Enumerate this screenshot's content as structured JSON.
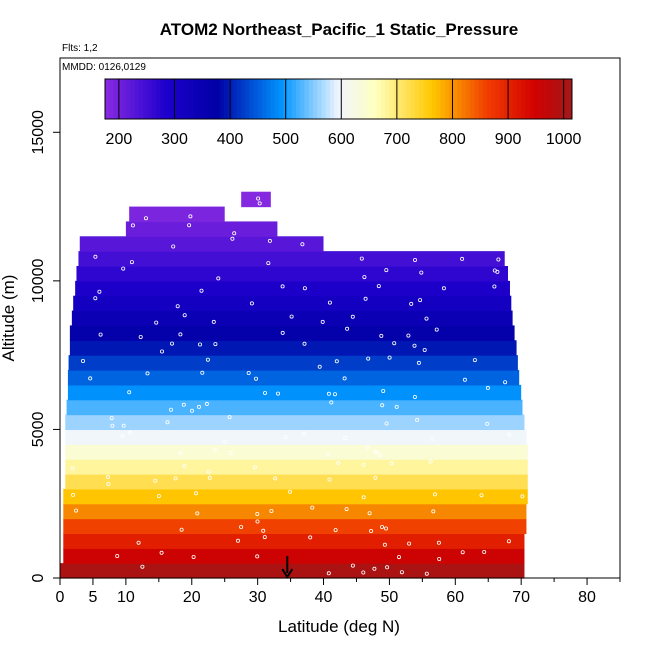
{
  "chart_data": {
    "type": "heatmap",
    "title": "ATOM2 Northeast_Pacific_1 Static_Pressure",
    "annotations": [
      "Flts: 1,2",
      "MMDD: 0126,0129"
    ],
    "xlabel": "Latitude (deg N)",
    "ylabel": "Altitude (m)",
    "xlim": [
      0,
      85
    ],
    "ylim": [
      0,
      17500
    ],
    "x_ticks": [
      0,
      5,
      10,
      20,
      30,
      40,
      50,
      60,
      70,
      80
    ],
    "y_ticks": [
      0,
      5000,
      10000,
      15000
    ],
    "colorbar": {
      "range": [
        175,
        1015
      ],
      "ticks": [
        200,
        300,
        400,
        500,
        600,
        700,
        800,
        900,
        1000
      ]
    },
    "marker": {
      "latitude": 34.5,
      "altitude": 0
    },
    "grid": false,
    "layers": [
      {
        "alt_bottom": 0,
        "alt_top": 500,
        "lat_min": 0.0,
        "lat_max": 70.5,
        "pressure": 1000
      },
      {
        "alt_bottom": 500,
        "alt_top": 1000,
        "lat_min": 0.5,
        "lat_max": 70.5,
        "pressure": 955
      },
      {
        "alt_bottom": 1000,
        "alt_top": 1500,
        "lat_min": 0.5,
        "lat_max": 70.5,
        "pressure": 905
      },
      {
        "alt_bottom": 1500,
        "alt_top": 2000,
        "lat_min": 0.5,
        "lat_max": 70.8,
        "pressure": 860
      },
      {
        "alt_bottom": 2000,
        "alt_top": 2500,
        "lat_min": 0.5,
        "lat_max": 70.8,
        "pressure": 810
      },
      {
        "alt_bottom": 2500,
        "alt_top": 3000,
        "lat_min": 0.5,
        "lat_max": 71.0,
        "pressure": 765
      },
      {
        "alt_bottom": 3000,
        "alt_top": 3500,
        "lat_min": 0.8,
        "lat_max": 71.0,
        "pressure": 720
      },
      {
        "alt_bottom": 3500,
        "alt_top": 4000,
        "lat_min": 0.8,
        "lat_max": 71.0,
        "pressure": 680
      },
      {
        "alt_bottom": 4000,
        "alt_top": 4500,
        "lat_min": 0.8,
        "lat_max": 71.0,
        "pressure": 640
      },
      {
        "alt_bottom": 4500,
        "alt_top": 5000,
        "lat_min": 0.8,
        "lat_max": 70.8,
        "pressure": 600
      },
      {
        "alt_bottom": 5000,
        "alt_top": 5500,
        "lat_min": 0.8,
        "lat_max": 70.5,
        "pressure": 560
      },
      {
        "alt_bottom": 5500,
        "alt_top": 6000,
        "lat_min": 1.0,
        "lat_max": 70.2,
        "pressure": 525
      },
      {
        "alt_bottom": 6000,
        "alt_top": 6500,
        "lat_min": 1.2,
        "lat_max": 70.0,
        "pressure": 490
      },
      {
        "alt_bottom": 6500,
        "alt_top": 7000,
        "lat_min": 1.2,
        "lat_max": 69.7,
        "pressure": 455
      },
      {
        "alt_bottom": 7000,
        "alt_top": 7500,
        "lat_min": 1.3,
        "lat_max": 69.5,
        "pressure": 425
      },
      {
        "alt_bottom": 7500,
        "alt_top": 8000,
        "lat_min": 1.5,
        "lat_max": 69.3,
        "pressure": 395
      },
      {
        "alt_bottom": 8000,
        "alt_top": 8500,
        "lat_min": 1.5,
        "lat_max": 69.0,
        "pressure": 365
      },
      {
        "alt_bottom": 8500,
        "alt_top": 9000,
        "lat_min": 1.8,
        "lat_max": 68.7,
        "pressure": 340
      },
      {
        "alt_bottom": 9000,
        "alt_top": 9500,
        "lat_min": 2.0,
        "lat_max": 68.5,
        "pressure": 315
      },
      {
        "alt_bottom": 9500,
        "alt_top": 10000,
        "lat_min": 2.3,
        "lat_max": 68.3,
        "pressure": 290
      },
      {
        "alt_bottom": 10000,
        "alt_top": 10500,
        "lat_min": 2.5,
        "lat_max": 68.0,
        "pressure": 268
      },
      {
        "alt_bottom": 10500,
        "alt_top": 11000,
        "lat_min": 2.8,
        "lat_max": 67.5,
        "pressure": 246
      },
      {
        "alt_bottom": 11000,
        "alt_top": 11500,
        "lat_min": 3.0,
        "lat_max": 40.0,
        "pressure": 226
      },
      {
        "alt_bottom": 11500,
        "alt_top": 12000,
        "lat_min": 10.0,
        "lat_max": 33.0,
        "pressure": 207
      },
      {
        "alt_bottom": 12000,
        "alt_top": 12500,
        "lat_min": 10.5,
        "lat_max": 25.0,
        "pressure": 190
      },
      {
        "alt_bottom": 12500,
        "alt_top": 13000,
        "lat_min": 27.5,
        "lat_max": 32.0,
        "pressure": 180
      }
    ]
  }
}
